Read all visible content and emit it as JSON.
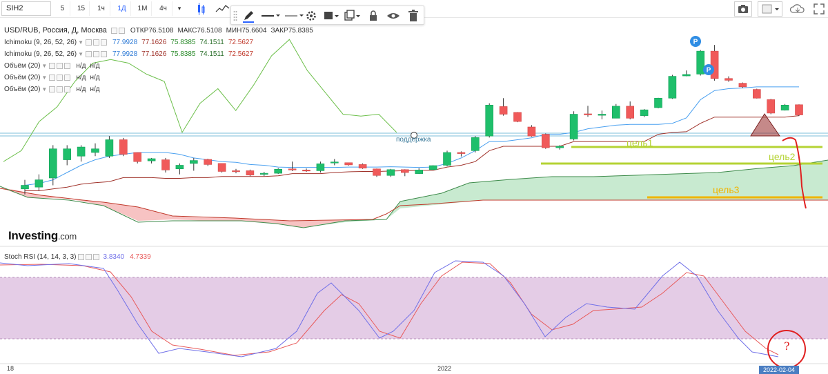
{
  "toolbar": {
    "symbol": "SIH2",
    "timeframes": [
      "5",
      "15",
      "1ч",
      "1Д",
      "1М",
      "4ч"
    ],
    "active_timeframe": "1Д",
    "icons": [
      "candles-icon",
      "indicators-icon"
    ],
    "right_icons": [
      "camera-icon",
      "layout-icon",
      "cloud-icon",
      "fullscreen-icon"
    ]
  },
  "draw_toolbar": {
    "icons": [
      "pencil-icon",
      "line-style-icon",
      "line-width-icon",
      "settings-icon",
      "fill-icon",
      "clone-icon",
      "lock-icon",
      "eye-icon",
      "trash-icon"
    ]
  },
  "legend": {
    "title": "USD/RUB, Россия, Д, Москва",
    "ohlc": [
      {
        "k": "ОТКР",
        "v": "76.5108"
      },
      {
        "k": "МАКС",
        "v": "76.5108"
      },
      {
        "k": "МИН",
        "v": "75.6604"
      },
      {
        "k": "ЗАКР",
        "v": "75.8385"
      }
    ],
    "indicators": [
      {
        "name": "Ichimoku (9, 26, 52, 26)",
        "values": [
          {
            "v": "77.9928",
            "color": "#2e7bd6"
          },
          {
            "v": "77.1626",
            "color": "#a0322a"
          },
          {
            "v": "75.8385",
            "color": "#2a8a2a"
          },
          {
            "v": "74.1511",
            "color": "#2a6e2a"
          },
          {
            "v": "72.5627",
            "color": "#c0392b"
          }
        ]
      },
      {
        "name": "Ichimoku (9, 26, 52, 26)",
        "values": [
          {
            "v": "77.9928",
            "color": "#2e7bd6"
          },
          {
            "v": "77.1626",
            "color": "#a0322a"
          },
          {
            "v": "75.8385",
            "color": "#2a8a2a"
          },
          {
            "v": "74.1511",
            "color": "#2a6e2a"
          },
          {
            "v": "72.5627",
            "color": "#c0392b"
          }
        ]
      },
      {
        "name": "Объём (20)",
        "values": [
          {
            "v": "н/д",
            "color": "#333333"
          },
          {
            "v": "н/д",
            "color": "#333333"
          }
        ]
      },
      {
        "name": "Объём (20)",
        "values": [
          {
            "v": "н/д",
            "color": "#333333"
          },
          {
            "v": "н/д",
            "color": "#333333"
          }
        ]
      },
      {
        "name": "Объём (20)",
        "values": [
          {
            "v": "н/д",
            "color": "#333333"
          },
          {
            "v": "н/д",
            "color": "#333333"
          }
        ]
      }
    ]
  },
  "brand": {
    "name": "Investing",
    "domain": ".com"
  },
  "annotations": {
    "support": "поддержка",
    "targets": [
      {
        "label": "цель1",
        "color": "#b5d334"
      },
      {
        "label": "цель2",
        "color": "#b5d334"
      },
      {
        "label": "цель3",
        "color": "#f0b400"
      }
    ],
    "question": "?"
  },
  "rsi": {
    "name": "Stoch RSI (14, 14, 3, 3)",
    "k_value": "3.8340",
    "d_value": "4.7339",
    "k_color": "#6f6fe8",
    "d_color": "#e85a5a"
  },
  "xaxis": {
    "labels": [
      "18",
      "2022"
    ],
    "current_date": "2022-02-04"
  },
  "colors": {
    "up": "#1fbf6b",
    "down": "#f05a5a",
    "kijun": "#a0322a",
    "tenkan": "#4aa0f0",
    "chikou": "#6cbf4a",
    "cloud_bull": "#c8ead0",
    "cloud_bear": "#f7c3c3",
    "rsi_band": "#e4cce6"
  },
  "chart_data": {
    "type": "candlestick",
    "title": "USD/RUB, Россия, Д, Москва",
    "candles": [
      {
        "o": 73.55,
        "h": 73.8,
        "l": 73.4,
        "c": 73.65
      },
      {
        "o": 73.6,
        "h": 73.95,
        "l": 73.5,
        "c": 73.8
      },
      {
        "o": 73.85,
        "h": 74.75,
        "l": 73.65,
        "c": 74.65
      },
      {
        "o": 74.35,
        "h": 74.75,
        "l": 74.2,
        "c": 74.65
      },
      {
        "o": 74.45,
        "h": 74.75,
        "l": 74.3,
        "c": 74.7
      },
      {
        "o": 74.55,
        "h": 74.8,
        "l": 74.45,
        "c": 74.65
      },
      {
        "o": 74.45,
        "h": 75.0,
        "l": 74.4,
        "c": 74.9
      },
      {
        "o": 74.9,
        "h": 74.95,
        "l": 74.45,
        "c": 74.5
      },
      {
        "o": 74.55,
        "h": 74.55,
        "l": 74.25,
        "c": 74.3
      },
      {
        "o": 74.32,
        "h": 74.4,
        "l": 74.25,
        "c": 74.38
      },
      {
        "o": 74.35,
        "h": 74.4,
        "l": 74.0,
        "c": 74.07
      },
      {
        "o": 74.1,
        "h": 74.25,
        "l": 73.95,
        "c": 74.2
      },
      {
        "o": 74.25,
        "h": 74.4,
        "l": 74.05,
        "c": 74.33
      },
      {
        "o": 74.36,
        "h": 74.38,
        "l": 74.18,
        "c": 74.22
      },
      {
        "o": 74.25,
        "h": 74.25,
        "l": 74.0,
        "c": 74.03
      },
      {
        "o": 74.05,
        "h": 74.1,
        "l": 73.98,
        "c": 74.04
      },
      {
        "o": 74.05,
        "h": 74.08,
        "l": 73.9,
        "c": 73.93
      },
      {
        "o": 73.95,
        "h": 74.02,
        "l": 73.9,
        "c": 73.98
      },
      {
        "o": 73.98,
        "h": 74.12,
        "l": 73.96,
        "c": 74.09
      },
      {
        "o": 74.1,
        "h": 74.3,
        "l": 74.04,
        "c": 74.07
      },
      {
        "o": 74.07,
        "h": 74.11,
        "l": 74.02,
        "c": 74.06
      },
      {
        "o": 74.05,
        "h": 74.3,
        "l": 74.0,
        "c": 74.24
      },
      {
        "o": 74.27,
        "h": 74.37,
        "l": 74.2,
        "c": 74.29
      },
      {
        "o": 74.27,
        "h": 74.27,
        "l": 74.19,
        "c": 74.21
      },
      {
        "o": 74.22,
        "h": 74.25,
        "l": 74.1,
        "c": 74.12
      },
      {
        "o": 74.1,
        "h": 74.11,
        "l": 73.88,
        "c": 73.92
      },
      {
        "o": 73.92,
        "h": 74.1,
        "l": 73.88,
        "c": 74.08
      },
      {
        "o": 74.08,
        "h": 74.09,
        "l": 73.9,
        "c": 74.0
      },
      {
        "o": 73.97,
        "h": 74.12,
        "l": 73.96,
        "c": 74.07
      },
      {
        "o": 74.08,
        "h": 74.2,
        "l": 74.08,
        "c": 74.19
      },
      {
        "o": 74.2,
        "h": 74.6,
        "l": 74.17,
        "c": 74.55
      },
      {
        "o": 74.55,
        "h": 74.58,
        "l": 74.44,
        "c": 74.52
      },
      {
        "o": 74.6,
        "h": 75.0,
        "l": 74.55,
        "c": 74.96
      },
      {
        "o": 75.0,
        "h": 75.9,
        "l": 74.96,
        "c": 75.85
      },
      {
        "o": 75.81,
        "h": 76.04,
        "l": 75.56,
        "c": 75.6
      },
      {
        "o": 75.65,
        "h": 75.66,
        "l": 75.38,
        "c": 75.4
      },
      {
        "o": 75.25,
        "h": 75.3,
        "l": 74.98,
        "c": 75.0
      },
      {
        "o": 75.05,
        "h": 75.07,
        "l": 74.65,
        "c": 74.68
      },
      {
        "o": 74.68,
        "h": 74.75,
        "l": 74.63,
        "c": 74.72
      },
      {
        "o": 74.92,
        "h": 75.68,
        "l": 74.88,
        "c": 75.6
      },
      {
        "o": 75.61,
        "h": 75.83,
        "l": 75.53,
        "c": 75.59
      },
      {
        "o": 75.57,
        "h": 75.7,
        "l": 75.46,
        "c": 75.6
      },
      {
        "o": 75.49,
        "h": 75.88,
        "l": 75.49,
        "c": 75.82
      },
      {
        "o": 75.82,
        "h": 75.95,
        "l": 75.46,
        "c": 75.49
      },
      {
        "o": 75.56,
        "h": 75.74,
        "l": 75.52,
        "c": 75.72
      },
      {
        "o": 75.78,
        "h": 76.05,
        "l": 75.76,
        "c": 76.04
      },
      {
        "o": 76.04,
        "h": 76.68,
        "l": 76.02,
        "c": 76.64
      },
      {
        "o": 76.65,
        "h": 76.8,
        "l": 76.64,
        "c": 76.69
      },
      {
        "o": 76.7,
        "h": 77.36,
        "l": 76.66,
        "c": 77.33
      },
      {
        "o": 77.33,
        "h": 77.5,
        "l": 76.52,
        "c": 76.58
      },
      {
        "o": 76.58,
        "h": 76.64,
        "l": 76.49,
        "c": 76.53
      },
      {
        "o": 76.45,
        "h": 76.47,
        "l": 76.32,
        "c": 76.35
      },
      {
        "o": 76.28,
        "h": 76.3,
        "l": 76.03,
        "c": 76.04
      },
      {
        "o": 76.0,
        "h": 76.02,
        "l": 75.6,
        "c": 75.63
      },
      {
        "o": 75.71,
        "h": 75.88,
        "l": 75.7,
        "c": 75.85
      },
      {
        "o": 75.86,
        "h": 75.87,
        "l": 75.55,
        "c": 75.58
      }
    ],
    "series": [
      {
        "name": "Kijun",
        "values": [
          73.5,
          73.5,
          73.55,
          73.6,
          73.68,
          73.72,
          73.75,
          73.86,
          73.86,
          73.86,
          73.84,
          73.84,
          73.86,
          73.86,
          73.89,
          73.89,
          73.89,
          73.89,
          73.91,
          73.97,
          73.97,
          73.97,
          74.0,
          74.02,
          74.03,
          74.03,
          74.04,
          74.05,
          74.06,
          74.06,
          74.15,
          74.2,
          74.3,
          74.6,
          74.72,
          74.72,
          74.72,
          74.72,
          74.72,
          74.85,
          74.85,
          74.85,
          74.85,
          74.85,
          74.85,
          75.05,
          75.1,
          75.12,
          75.35,
          75.52,
          75.52,
          75.52,
          75.52,
          75.52,
          75.52,
          75.56
        ]
      },
      {
        "name": "Tenkan",
        "values": [
          73.65,
          73.7,
          73.8,
          74.0,
          74.2,
          74.35,
          74.45,
          74.5,
          74.55,
          74.55,
          74.55,
          74.5,
          74.4,
          74.35,
          74.3,
          74.28,
          74.22,
          74.2,
          74.15,
          74.14,
          74.14,
          74.14,
          74.14,
          74.15,
          74.15,
          74.15,
          74.16,
          74.15,
          74.14,
          74.15,
          74.25,
          74.4,
          74.6,
          74.85,
          74.85,
          74.9,
          74.95,
          75.05,
          75.05,
          75.1,
          75.2,
          75.25,
          75.3,
          75.32,
          75.32,
          75.32,
          75.35,
          75.5,
          76.0,
          76.25,
          76.3,
          76.32,
          76.35,
          76.35,
          76.35,
          76.35
        ]
      },
      {
        "name": "Chikou",
        "values": [
          74.3,
          74.6,
          75.4,
          75.8,
          76.5,
          77.0,
          77.1,
          77.0,
          76.7,
          76.5,
          75.1,
          75.9,
          76.3,
          75.7,
          76.4,
          77.2,
          77.65,
          76.8,
          76.2,
          75.6,
          75.55,
          75.6,
          75.1,
          null,
          null,
          null,
          null,
          null,
          null,
          null,
          null,
          null,
          null,
          null,
          null,
          null,
          null,
          null,
          null,
          null,
          null,
          null,
          null,
          null,
          null,
          null,
          null,
          null,
          null,
          null,
          null,
          null,
          null,
          null,
          null,
          null
        ]
      }
    ],
    "ylabel": "",
    "xlabel": "",
    "ylim": [
      72.6,
      77.9
    ]
  }
}
